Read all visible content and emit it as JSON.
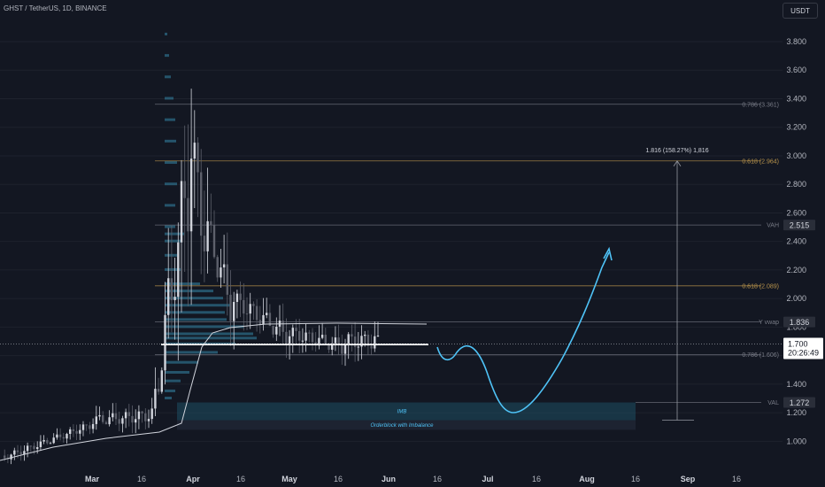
{
  "header": {
    "symbol": "GHST / TetherUS, 1D, BINANCE",
    "currency": "USDT"
  },
  "chart_data": {
    "type": "candlestick",
    "y_ticks": [
      "3.800",
      "3.600",
      "3.400",
      "3.200",
      "3.000",
      "2.800",
      "2.600",
      "2.400",
      "2.200",
      "2.000",
      "1.800",
      "1.600",
      "1.400",
      "1.200",
      "1.000"
    ],
    "x_ticks": [
      {
        "label": "Mar",
        "bold": true
      },
      {
        "label": "16",
        "bold": false
      },
      {
        "label": "Apr",
        "bold": true
      },
      {
        "label": "16",
        "bold": false
      },
      {
        "label": "May",
        "bold": true
      },
      {
        "label": "16",
        "bold": false
      },
      {
        "label": "Jun",
        "bold": true
      },
      {
        "label": "16",
        "bold": false
      },
      {
        "label": "Jul",
        "bold": true
      },
      {
        "label": "16",
        "bold": false
      },
      {
        "label": "Aug",
        "bold": true
      },
      {
        "label": "16",
        "bold": false
      },
      {
        "label": "Sep",
        "bold": true
      },
      {
        "label": "16",
        "bold": false
      }
    ],
    "levels": [
      {
        "label": "0.786 (3.361)",
        "price": 3.361,
        "color": "#787b86"
      },
      {
        "label": "0.618 (2.964)",
        "price": 2.964,
        "color": "#b8934c"
      },
      {
        "label": "VAH",
        "price": 2.515,
        "color": "#787b86"
      },
      {
        "label": "0.618 (2.089)",
        "price": 2.089,
        "color": "#b8934c"
      },
      {
        "label": "Y vwap",
        "price": 1.836,
        "color": "#787b86"
      },
      {
        "label": "0.786 (1.606)",
        "price": 1.606,
        "color": "#787b86"
      },
      {
        "label": "VAL",
        "price": 1.272,
        "color": "#787b86"
      }
    ],
    "price_tags": [
      {
        "text": "2.515",
        "price": 2.515
      },
      {
        "text": "1.836",
        "price": 1.836
      },
      {
        "text": "1.272",
        "price": 1.272
      }
    ],
    "last_price": {
      "price": 1.7,
      "value": "1.700",
      "countdown": "20:26:49"
    },
    "measure": {
      "label": "1.816 (158.27%) 1,816",
      "from": 1.148,
      "to": 2.964
    },
    "zones": [
      {
        "label": "IMB",
        "from": 1.148,
        "to": 1.272
      },
      {
        "label": "Orderblock with Imbalance",
        "from": 1.08,
        "to": 1.148
      }
    ],
    "poc_price": 1.716,
    "vwap_price": 1.836,
    "style": {
      "up": "#d1d4dc",
      "down": "#5d606b",
      "grid": "#1e222d",
      "fib": "#b8934c",
      "projection": "#4fc3f7",
      "volume_profile": "#2e6f8a"
    }
  }
}
